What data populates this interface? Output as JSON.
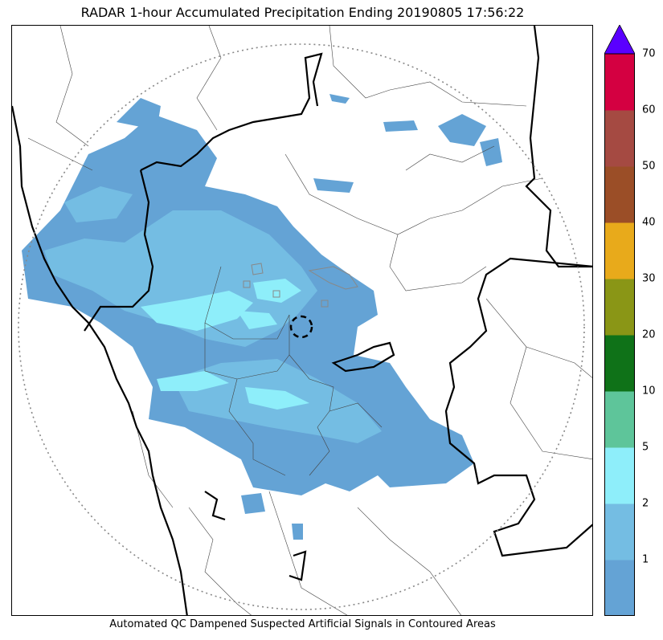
{
  "title": "RADAR 1-hour Accumulated Precipitation Ending 20190805 17:56:22",
  "caption": "Automated QC Dampened Suspected Artificial Signals in Contoured Areas",
  "colors": {
    "light_blue": "#64a3d5",
    "sky_blue": "#74bde3",
    "cyan": "#8eeefa",
    "border": "#000000",
    "district": "#444444",
    "range_ring": "#888888"
  },
  "colorbar": {
    "ticks": [
      "1",
      "2",
      "5",
      "10",
      "20",
      "30",
      "40",
      "50",
      "60",
      "70"
    ],
    "bins": [
      {
        "color": "#64a3d5"
      },
      {
        "color": "#74bde3"
      },
      {
        "color": "#8eeefa"
      },
      {
        "color": "#5ec59a"
      },
      {
        "color": "#0f7218"
      },
      {
        "color": "#8a9616"
      },
      {
        "color": "#e8aa1b"
      },
      {
        "color": "#9b4e27"
      },
      {
        "color": "#a54a42"
      },
      {
        "color": "#d40041"
      }
    ],
    "extend_color": "#5a00ff"
  }
}
